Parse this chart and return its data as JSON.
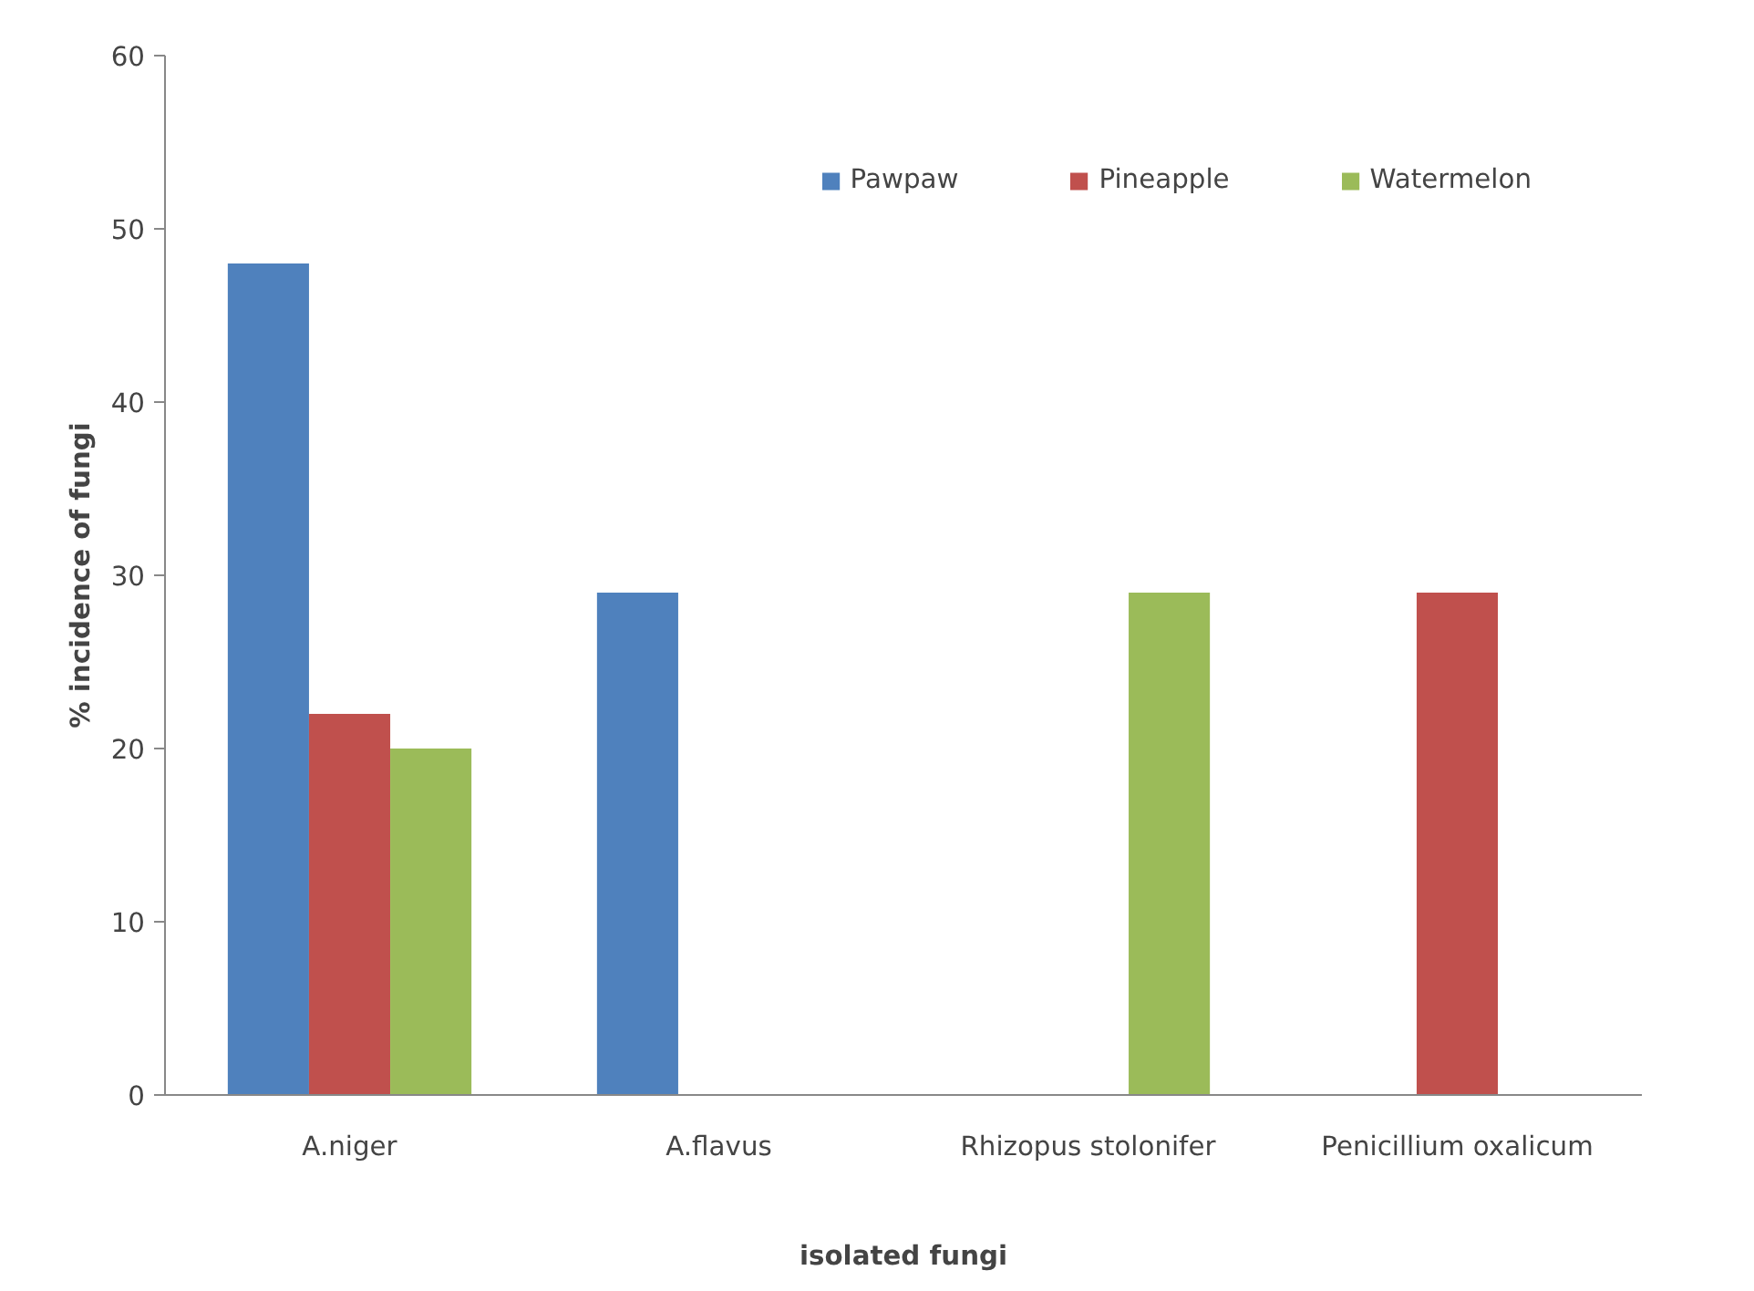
{
  "chart_data": {
    "type": "bar",
    "xlabel": "isolated fungi",
    "ylabel": "% incidence of fungi",
    "categories": [
      "A.niger",
      "A.flavus",
      "Rhizopus stolonifer",
      "Penicillium oxalicum"
    ],
    "series": [
      {
        "name": "Pawpaw",
        "color": "#4f81bd",
        "values": [
          48,
          29,
          0,
          0
        ]
      },
      {
        "name": "Pineapple",
        "color": "#c0504d",
        "values": [
          22,
          0,
          0,
          29
        ]
      },
      {
        "name": "Watermelon",
        "color": "#9bbb59",
        "values": [
          20,
          0,
          29,
          0
        ]
      }
    ],
    "ylim": [
      0,
      60
    ],
    "yticks": [
      0,
      10,
      20,
      30,
      40,
      50,
      60
    ],
    "grid": false,
    "legend": "top right"
  }
}
